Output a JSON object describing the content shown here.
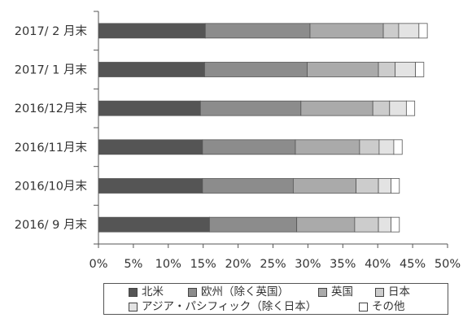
{
  "chart_data": {
    "type": "bar",
    "orientation": "horizontal",
    "stacked": true,
    "categories": [
      "2017/ 2 月末",
      "2017/ 1 月末",
      "2016/12月末",
      "2016/11月末",
      "2016/10月末",
      "2016/ 9 月末"
    ],
    "series": [
      {
        "name": "北米",
        "color": "#555555",
        "values": [
          15.3,
          15.2,
          14.6,
          14.9,
          14.9,
          15.9
        ]
      },
      {
        "name": "欧州（除く英国）",
        "color": "#8c8c8c",
        "values": [
          15.0,
          14.7,
          14.4,
          13.3,
          13.0,
          12.5
        ]
      },
      {
        "name": "英国",
        "color": "#aaaaaa",
        "values": [
          10.5,
          10.2,
          10.3,
          9.2,
          9.0,
          8.3
        ]
      },
      {
        "name": "日本",
        "color": "#cccccc",
        "values": [
          2.2,
          2.4,
          2.4,
          2.8,
          3.2,
          3.4
        ]
      },
      {
        "name": "アジア・パシフィック（除く日本）",
        "color": "#e3e3e3",
        "values": [
          2.9,
          2.9,
          2.4,
          2.1,
          1.8,
          1.8
        ]
      },
      {
        "name": "その他",
        "color": "#ffffff",
        "values": [
          1.2,
          1.2,
          1.2,
          1.2,
          1.2,
          1.2
        ]
      }
    ],
    "xaxis_ticks": [
      "0%",
      "5%",
      "10%",
      "15%",
      "20%",
      "25%",
      "30%",
      "35%",
      "40%",
      "45%",
      "50%"
    ],
    "xlim": [
      0,
      50
    ],
    "grid": false,
    "legend_position": "bottom"
  }
}
